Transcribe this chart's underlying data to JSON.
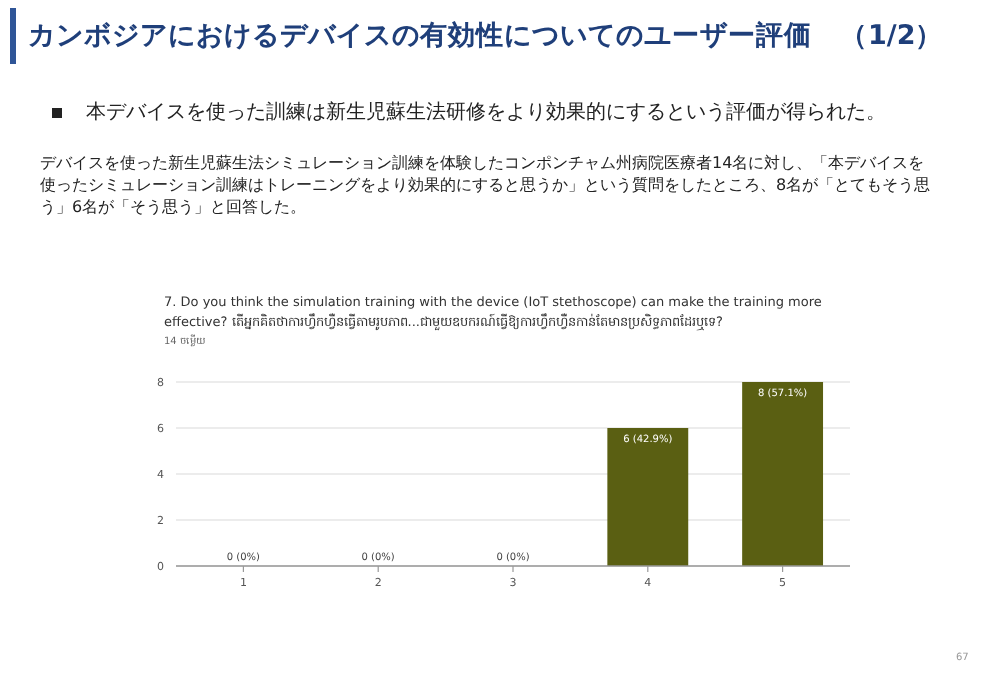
{
  "chart_data": {
    "type": "bar",
    "title": "カンボジアにおけるデバイスの有効性についてのユーザー評価　（1/2）",
    "annotations": [
      "本デバイスを使った訓練は新生児蘇生法研修をより効果的にするという評価が得られた。",
      "デバイスを使った新生児蘇生法シミュレーション訓練を体験したコンポンチャム州病院医療者14名に対し、「本デバイスを使ったシミュレーション訓練はトレーニングをより効果的にすると思うか」という質問をしたところ、8名が「とてもそう思う」6名が「そう思う」と回答した。",
      "7. Do you think the simulation training with the device (IoT stethoscope) can make the training more effective? តើអ្នកគិតថាការហ្វឹកហ្វឺនធ្វើតាមរូបភាព...ជាមួយឧបករណ៍ធ្វើឱ្យការហ្វឹកហ្វឺនកាន់តែមានប្រសិទ្ធភាពដែរឬទេ?",
      "14 ចម្លើយ",
      "67"
    ],
    "categories": [
      "1",
      "2",
      "3",
      "4",
      "5"
    ],
    "values": [
      0,
      0,
      0,
      6,
      8
    ],
    "value_labels": [
      "0 (0%)",
      "0 (0%)",
      "0 (0%)",
      "6 (42.9%)",
      "8 (57.1%)"
    ],
    "color": "#5a5f12",
    "ylim": [
      0,
      8
    ],
    "yticks": [
      0,
      2,
      4,
      6,
      8
    ],
    "grid": "y"
  }
}
